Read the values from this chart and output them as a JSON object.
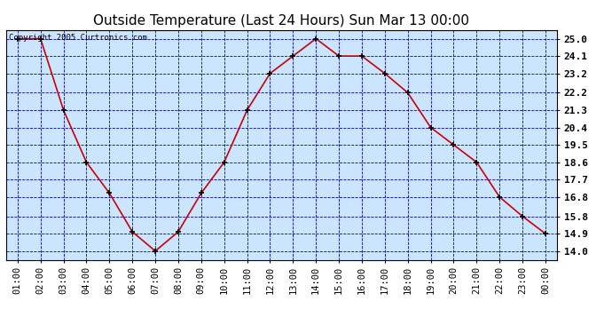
{
  "title": "Outside Temperature (Last 24 Hours) Sun Mar 13 00:00",
  "copyright": "Copyright 2005 Curtronics.com",
  "x_labels": [
    "01:00",
    "02:00",
    "03:00",
    "04:00",
    "05:00",
    "06:00",
    "07:00",
    "08:00",
    "09:00",
    "10:00",
    "11:00",
    "12:00",
    "13:00",
    "14:00",
    "15:00",
    "16:00",
    "17:00",
    "18:00",
    "19:00",
    "20:00",
    "21:00",
    "22:00",
    "23:00",
    "00:00"
  ],
  "x_values": [
    1,
    2,
    3,
    4,
    5,
    6,
    7,
    8,
    9,
    10,
    11,
    12,
    13,
    14,
    15,
    16,
    17,
    18,
    19,
    20,
    21,
    22,
    23,
    24
  ],
  "y_values": [
    25.0,
    25.0,
    21.3,
    18.6,
    17.0,
    15.0,
    14.0,
    15.0,
    17.0,
    18.6,
    21.3,
    23.2,
    24.1,
    25.0,
    24.1,
    24.1,
    23.2,
    22.2,
    20.4,
    19.5,
    18.6,
    16.8,
    15.8,
    14.9
  ],
  "y_ticks": [
    14.0,
    14.9,
    15.8,
    16.8,
    17.7,
    18.6,
    19.5,
    20.4,
    21.3,
    22.2,
    23.2,
    24.1,
    25.0
  ],
  "ylim": [
    13.55,
    25.45
  ],
  "xlim": [
    0.5,
    24.5
  ],
  "line_color": "#cc0000",
  "marker_color": "#000000",
  "bg_color": "#cce5ff",
  "fig_color": "#ffffff",
  "grid_color": "#0000bb",
  "title_fontsize": 11,
  "copyright_fontsize": 6.5,
  "tick_fontsize": 7.5,
  "ytick_fontsize": 8
}
